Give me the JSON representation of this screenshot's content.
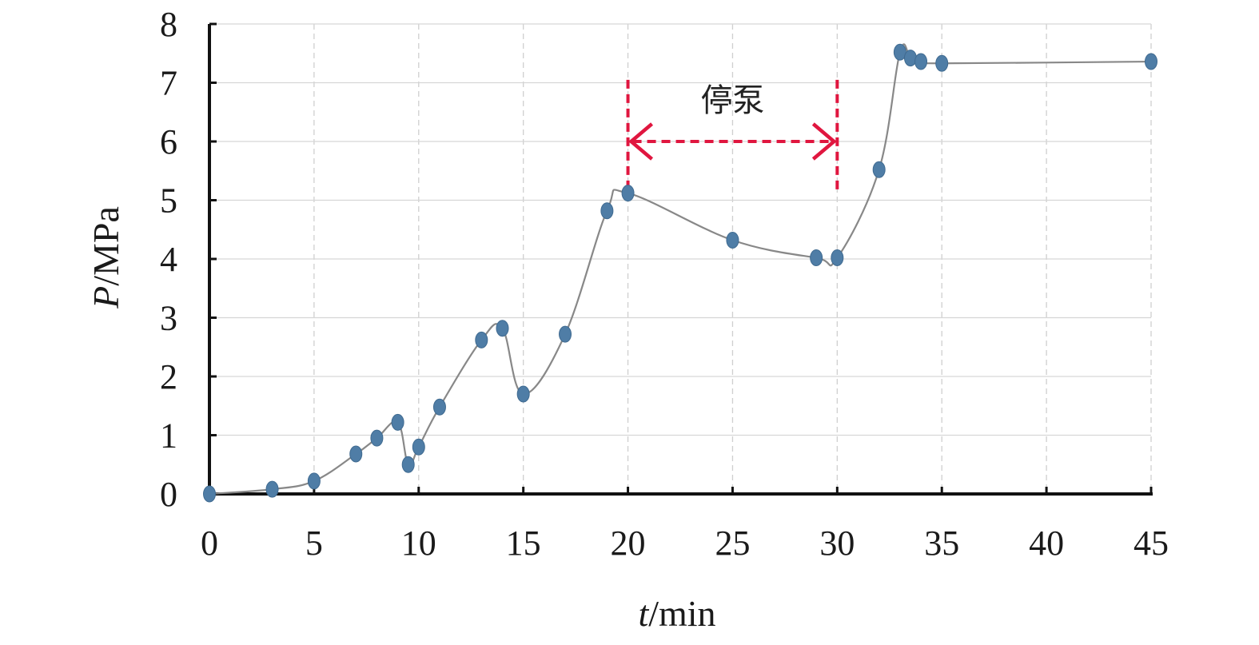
{
  "chart_data": {
    "type": "line",
    "title": "",
    "xlabel": {
      "var": "t",
      "unit": "/min"
    },
    "ylabel": {
      "var": "P",
      "unit": "/MPa"
    },
    "xlim": [
      0,
      45
    ],
    "ylim": [
      0,
      8
    ],
    "xticks": [
      "0",
      "5",
      "10",
      "15",
      "20",
      "25",
      "30",
      "35",
      "40",
      "45"
    ],
    "yticks": [
      "0",
      "1",
      "2",
      "3",
      "4",
      "5",
      "6",
      "7",
      "8"
    ],
    "grid": true,
    "series": [
      {
        "color": "#4f7da6",
        "points": [
          [
            0,
            0.0
          ],
          [
            3,
            0.08
          ],
          [
            5,
            0.22
          ],
          [
            7,
            0.68
          ],
          [
            8,
            0.95
          ],
          [
            9,
            1.22
          ],
          [
            9.5,
            0.5
          ],
          [
            10,
            0.8
          ],
          [
            11,
            1.48
          ],
          [
            13,
            2.62
          ],
          [
            14,
            2.82
          ],
          [
            15,
            1.7
          ],
          [
            17,
            2.72
          ],
          [
            19,
            4.82
          ],
          [
            20,
            5.12
          ],
          [
            25,
            4.32
          ],
          [
            29,
            4.02
          ],
          [
            30,
            4.02
          ],
          [
            32,
            5.52
          ],
          [
            33,
            7.52
          ],
          [
            33.5,
            7.42
          ],
          [
            34,
            7.36
          ],
          [
            35,
            7.33
          ],
          [
            45,
            7.36
          ]
        ]
      }
    ],
    "annotation": {
      "label": "停泵",
      "x_start": 20,
      "x_end": 30,
      "arrow_y": 6,
      "line_y_range": [
        5.1,
        7.05
      ],
      "color": "#e0163f"
    }
  }
}
